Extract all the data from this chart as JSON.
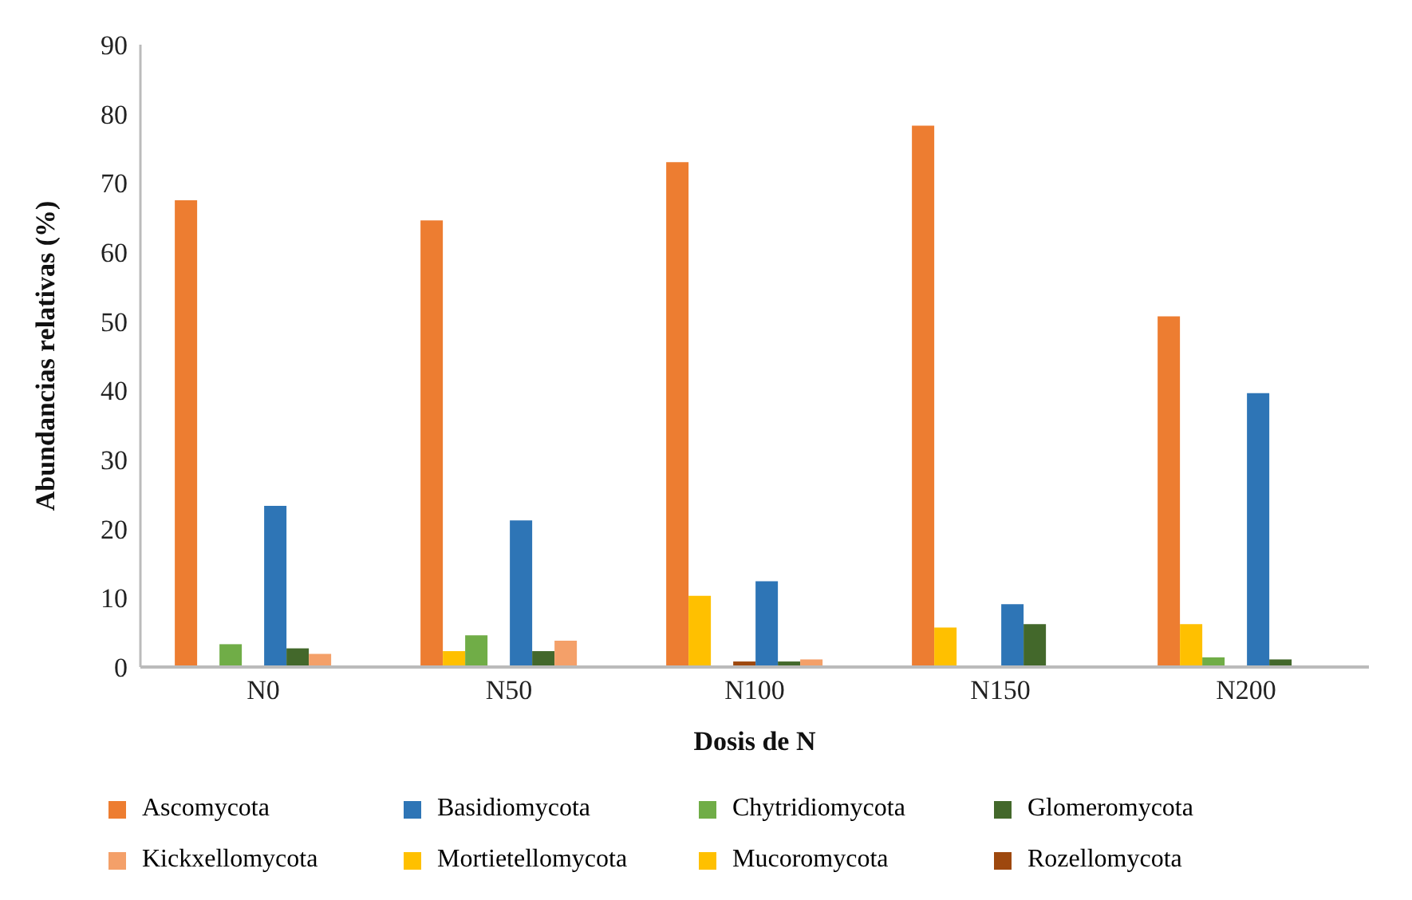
{
  "chart_data": {
    "type": "bar",
    "xlabel": "Dosis de N",
    "ylabel": "Abundancias relativas (%)",
    "categories": [
      "N0",
      "N50",
      "N100",
      "N150",
      "N200"
    ],
    "series": [
      {
        "name": "Ascomycota",
        "color": "#ed7d31",
        "values": [
          67.5,
          64.6,
          73,
          78.3,
          50.7
        ]
      },
      {
        "name": "Mortietellomycota",
        "color": "#ffc000",
        "values": [
          0,
          2.3,
          10.3,
          5.7,
          6.2
        ]
      },
      {
        "name": "Chytridiomycota",
        "color": "#70ad47",
        "values": [
          3.3,
          4.6,
          0,
          0,
          1.4
        ]
      },
      {
        "name": "Rozellomycota",
        "color": "#9e480e",
        "values": [
          0,
          0,
          0.8,
          0,
          0
        ]
      },
      {
        "name": "Basidiomycota",
        "color": "#2e75b6",
        "values": [
          23.3,
          21.2,
          12.4,
          9.1,
          39.6
        ]
      },
      {
        "name": "Glomeromycota",
        "color": "#43682b",
        "values": [
          2.7,
          2.3,
          0.8,
          6.2,
          1.1
        ]
      },
      {
        "name": "Kickxellomycota",
        "color": "#f4a069",
        "values": [
          1.9,
          3.8,
          1.1,
          0,
          0
        ]
      },
      {
        "name": "Mucoromycota",
        "color": "#ffc000",
        "values": [
          0,
          0,
          0,
          0,
          0
        ]
      }
    ],
    "ylim": [
      0,
      90
    ],
    "yticks": [
      0,
      10,
      20,
      30,
      40,
      50,
      60,
      70,
      80,
      90
    ],
    "grid": false,
    "legend": "bottom"
  }
}
